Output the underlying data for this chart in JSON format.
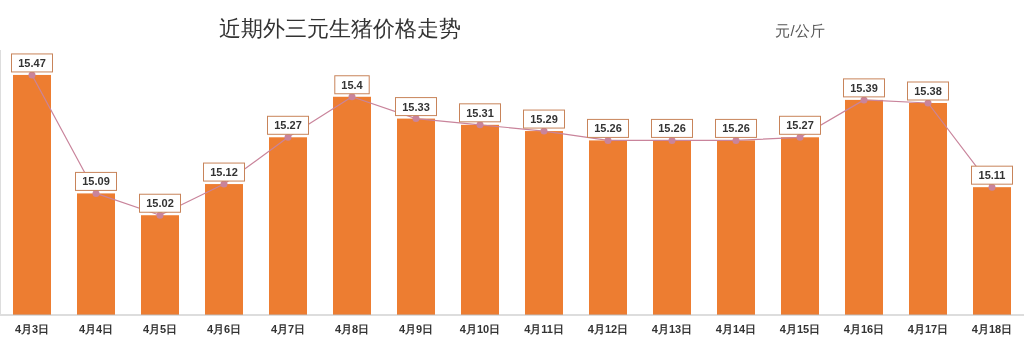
{
  "chart_data": {
    "type": "bar",
    "title": "近期外三元生猪价格走势",
    "annotations": [
      "元/公斤"
    ],
    "categories": [
      "4月3日",
      "4月4日",
      "4月5日",
      "4月6日",
      "4月7日",
      "4月8日",
      "4月9日",
      "4月10日",
      "4月11日",
      "4月12日",
      "4月13日",
      "4月14日",
      "4月15日",
      "4月16日",
      "4月17日",
      "4月18日"
    ],
    "series": [
      {
        "color": "#ed7d31",
        "values": [
          15.47,
          15.09,
          15.02,
          15.12,
          15.27,
          15.4,
          15.33,
          15.31,
          15.29,
          15.26,
          15.26,
          15.26,
          15.27,
          15.39,
          15.38,
          15.11
        ]
      },
      {
        "type": "line",
        "color": "#c9849b",
        "marker": "circle",
        "values": [
          15.47,
          15.09,
          15.02,
          15.12,
          15.27,
          15.4,
          15.33,
          15.31,
          15.29,
          15.26,
          15.26,
          15.26,
          15.27,
          15.39,
          15.38,
          15.11
        ],
        "value_labels": [
          "15.47",
          "15.09",
          "15.02",
          "15.12",
          "15.27",
          "15.4",
          "15.33",
          "15.31",
          "15.29",
          "15.26",
          "15.26",
          "15.26",
          "15.27",
          "15.39",
          "15.38",
          "15.11"
        ]
      }
    ],
    "ylim": [
      14.7,
      15.55
    ]
  }
}
